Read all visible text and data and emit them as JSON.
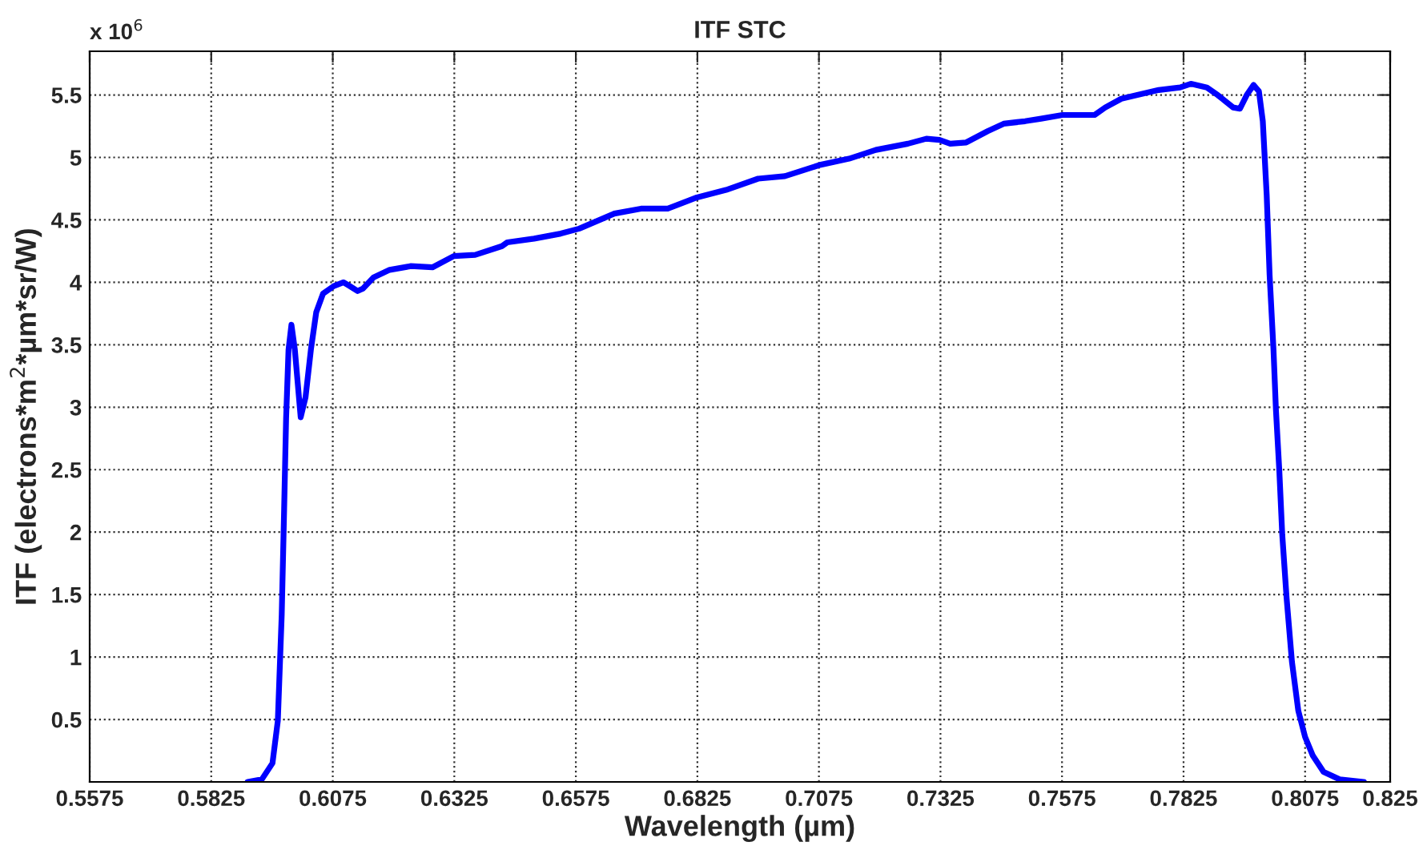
{
  "chart_data": {
    "type": "line",
    "title": "ITF STC",
    "xlabel": "Wavelength (µm)",
    "ylabel": "ITF (electrons*m$^{2}$*µm*sr/W)",
    "annotations": [
      "x 10$^{6}$"
    ],
    "xlim": [
      0.5575,
      0.825
    ],
    "xticks": [
      0.5575,
      0.5825,
      0.6075,
      0.6325,
      0.6575,
      0.6825,
      0.7075,
      0.7325,
      0.7575,
      0.7825,
      0.8075,
      0.825
    ],
    "ylim": [
      0,
      5.85
    ],
    "yticks": [
      0.5,
      1,
      1.5,
      2,
      2.5,
      3,
      3.5,
      4,
      4.5,
      5,
      5.5
    ],
    "grid": true,
    "legend": false,
    "marker": "none",
    "line_style": "solid",
    "series": [
      {
        "color": "#0000ff",
        "x": [
          0.59,
          0.5929,
          0.5951,
          0.5962,
          0.597,
          0.5975,
          0.5979,
          0.5984,
          0.599,
          0.5997,
          0.6009,
          0.6019,
          0.603,
          0.6041,
          0.6055,
          0.6077,
          0.6097,
          0.611,
          0.6126,
          0.6137,
          0.6159,
          0.6192,
          0.6236,
          0.628,
          0.6324,
          0.6368,
          0.6423,
          0.6434,
          0.6489,
          0.6544,
          0.6582,
          0.6654,
          0.6709,
          0.6764,
          0.6824,
          0.6884,
          0.695,
          0.7005,
          0.7077,
          0.7137,
          0.7192,
          0.7258,
          0.7296,
          0.7323,
          0.7345,
          0.7378,
          0.7422,
          0.7455,
          0.7499,
          0.7532,
          0.7576,
          0.7642,
          0.7664,
          0.7697,
          0.773,
          0.7774,
          0.7818,
          0.784,
          0.7873,
          0.7895,
          0.7927,
          0.7941,
          0.7955,
          0.7969,
          0.798,
          0.7988,
          0.7996,
          0.8002,
          0.801,
          0.8015,
          0.8022,
          0.8028,
          0.8037,
          0.8048,
          0.8061,
          0.8075,
          0.8091,
          0.8113,
          0.8146,
          0.8196
        ],
        "values": [
          0,
          0.02,
          0.15,
          0.49,
          1.34,
          2.19,
          2.91,
          3.46,
          3.66,
          3.46,
          2.92,
          3.08,
          3.46,
          3.76,
          3.91,
          3.97,
          4.0,
          3.97,
          3.93,
          3.95,
          4.04,
          4.1,
          4.13,
          4.12,
          4.21,
          4.22,
          4.29,
          4.32,
          4.35,
          4.39,
          4.43,
          4.55,
          4.59,
          4.59,
          4.68,
          4.74,
          4.83,
          4.85,
          4.94,
          4.99,
          5.06,
          5.11,
          5.15,
          5.14,
          5.11,
          5.12,
          5.21,
          5.27,
          5.29,
          5.31,
          5.34,
          5.34,
          5.4,
          5.47,
          5.5,
          5.54,
          5.56,
          5.59,
          5.56,
          5.5,
          5.4,
          5.39,
          5.5,
          5.58,
          5.53,
          5.29,
          4.7,
          4.06,
          3.46,
          2.98,
          2.49,
          1.98,
          1.47,
          0.96,
          0.57,
          0.36,
          0.21,
          0.08,
          0.02,
          0
        ]
      }
    ]
  }
}
